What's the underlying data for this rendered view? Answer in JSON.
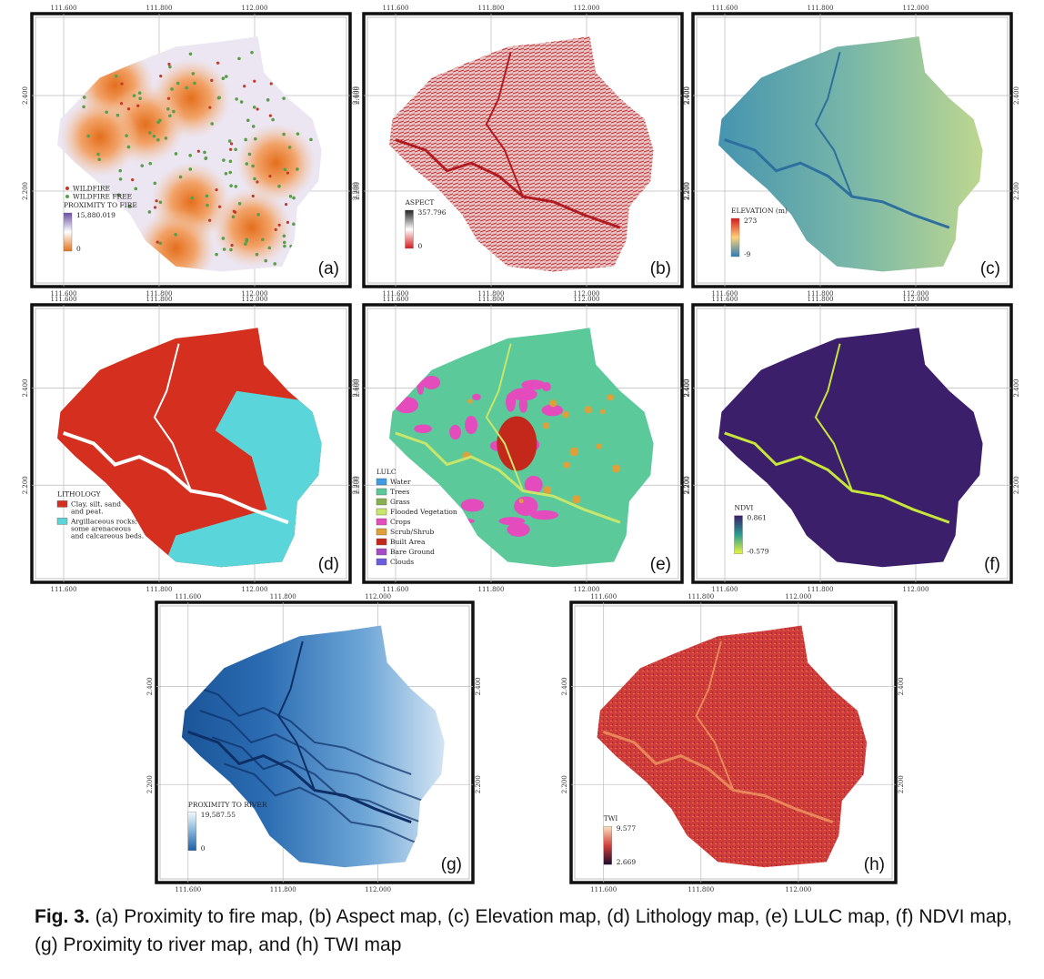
{
  "map_grid": {
    "x_ticks": [
      "111.600",
      "111.800",
      "112.000"
    ],
    "y_ticks": [
      "2.400",
      "2.200"
    ]
  },
  "panels": [
    {
      "label": "(a)",
      "legend": {
        "points": [
          {
            "name": "WILDFIRE",
            "color": "#c0392b"
          },
          {
            "name": "WILDFIRE FREE",
            "color": "#5a9e4a"
          }
        ],
        "title": "PROXIMITY TO FIRE",
        "ramp": {
          "max": "15,880.019",
          "min": "0",
          "colors": [
            "#6a4fa3",
            "#ffffff",
            "#e0741f"
          ]
        }
      }
    },
    {
      "label": "(b)",
      "legend": {
        "title": "ASPECT",
        "ramp": {
          "max": "357.796",
          "min": "0",
          "colors": [
            "#222222",
            "#ffffff",
            "#d7191c"
          ]
        }
      }
    },
    {
      "label": "(c)",
      "legend": {
        "title": "ELEVATION (m)",
        "ramp": {
          "max": "273",
          "min": "-9",
          "colors": [
            "#d7191c",
            "#fdd27a",
            "#2c7bb6"
          ]
        }
      }
    },
    {
      "label": "(d)",
      "legend": {
        "title": "LITHOLOGY",
        "classes": [
          {
            "lines": [
              "Clay, silt, sand",
              "and peat."
            ],
            "color": "#d42f1f"
          },
          {
            "lines": [
              "Argillaceous rocks;",
              "some arenaceous",
              "and calcareous beds."
            ],
            "color": "#5ad6da"
          }
        ]
      }
    },
    {
      "label": "(e)",
      "legend": {
        "title": "LULC",
        "classes": [
          {
            "lines": [
              "Water"
            ],
            "color": "#419bdf"
          },
          {
            "lines": [
              "Trees"
            ],
            "color": "#5cc99a"
          },
          {
            "lines": [
              "Grass"
            ],
            "color": "#88b053"
          },
          {
            "lines": [
              "Flooded Vegetation"
            ],
            "color": "#c8e66a"
          },
          {
            "lines": [
              "Crops"
            ],
            "color": "#e44bbd"
          },
          {
            "lines": [
              "Scrub/Shrub"
            ],
            "color": "#dfa03a"
          },
          {
            "lines": [
              "Built Area"
            ],
            "color": "#c4281b"
          },
          {
            "lines": [
              "Bare Ground"
            ],
            "color": "#a34cc4"
          },
          {
            "lines": [
              "Clouds"
            ],
            "color": "#6a5de0"
          }
        ]
      }
    },
    {
      "label": "(f)",
      "legend": {
        "title": "NDVI",
        "ramp": {
          "max": "0.861",
          "min": "-0.579",
          "colors": [
            "#3b1f6b",
            "#2a9d8f",
            "#e8f53a"
          ]
        }
      }
    },
    {
      "label": "(g)",
      "legend": {
        "title": "PROXIMITY TO RIVER",
        "ramp": {
          "max": "19,587.55",
          "min": "0",
          "colors": [
            "#f4f9fd",
            "#7fb2dc",
            "#1d5fa6"
          ]
        }
      }
    },
    {
      "label": "(h)",
      "legend": {
        "title": "TWI",
        "ramp": {
          "max": "9.577",
          "min": "2.669",
          "colors": [
            "#fbe3c0",
            "#d5403a",
            "#1b0c2c"
          ]
        }
      }
    }
  ],
  "caption": {
    "label": "Fig. 3.",
    "text": "(a) Proximity to fire map, (b) Aspect map, (c) Elevation map, (d) Lithology map, (e) LULC map, (f) NDVI map, (g) Proximity to river map, and (h) TWI map"
  }
}
